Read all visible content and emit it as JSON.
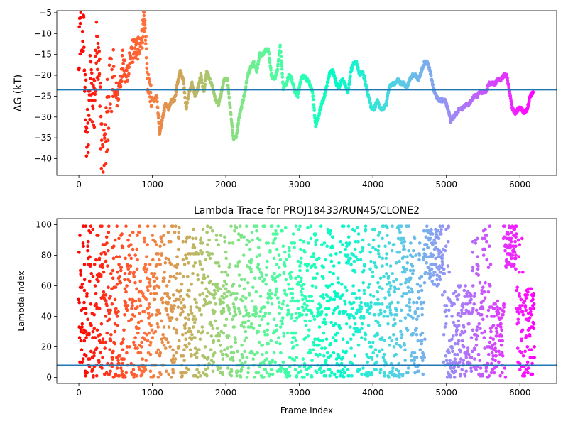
{
  "chart_data": [
    {
      "type": "scatter",
      "title": "",
      "xlabel": "",
      "ylabel": "ΔG (kT)",
      "xlim": [
        -300,
        6500
      ],
      "ylim": [
        -44,
        -4.5
      ],
      "xticks": [
        0,
        1000,
        2000,
        3000,
        4000,
        5000,
        6000
      ],
      "yticks": [
        -40,
        -35,
        -30,
        -25,
        -20,
        -15,
        -10,
        -5
      ],
      "hline": -23.5,
      "hline_color": "#1f77b4",
      "colormap": "rainbow (red at frame 0 → violet at last frame)",
      "frame_max": 6200,
      "trace": [
        [
          0,
          -10
        ],
        [
          40,
          -5
        ],
        [
          80,
          -20
        ],
        [
          120,
          -38
        ],
        [
          160,
          -20
        ],
        [
          200,
          -30
        ],
        [
          240,
          -14
        ],
        [
          280,
          -22
        ],
        [
          320,
          -42
        ],
        [
          360,
          -38
        ],
        [
          400,
          -26
        ],
        [
          460,
          -22
        ],
        [
          520,
          -25
        ],
        [
          560,
          -22
        ],
        [
          600,
          -16
        ],
        [
          650,
          -20
        ],
        [
          700,
          -15
        ],
        [
          760,
          -14
        ],
        [
          800,
          -14
        ],
        [
          850,
          -13
        ],
        [
          880,
          -7
        ],
        [
          900,
          -8
        ],
        [
          940,
          -22
        ],
        [
          980,
          -25
        ],
        [
          1020,
          -26
        ],
        [
          1060,
          -25
        ],
        [
          1100,
          -34
        ],
        [
          1140,
          -30
        ],
        [
          1180,
          -27
        ],
        [
          1220,
          -28
        ],
        [
          1260,
          -26
        ],
        [
          1300,
          -26
        ],
        [
          1340,
          -22
        ],
        [
          1380,
          -19
        ],
        [
          1420,
          -21
        ],
        [
          1460,
          -28
        ],
        [
          1500,
          -24
        ],
        [
          1540,
          -22
        ],
        [
          1580,
          -25
        ],
        [
          1620,
          -23
        ],
        [
          1660,
          -20
        ],
        [
          1700,
          -24
        ],
        [
          1740,
          -19
        ],
        [
          1780,
          -21
        ],
        [
          1820,
          -23
        ],
        [
          1860,
          -26
        ],
        [
          1900,
          -27
        ],
        [
          1940,
          -24
        ],
        [
          1980,
          -21
        ],
        [
          2020,
          -21
        ],
        [
          2060,
          -28
        ],
        [
          2100,
          -35
        ],
        [
          2140,
          -35
        ],
        [
          2180,
          -30
        ],
        [
          2220,
          -27
        ],
        [
          2260,
          -24
        ],
        [
          2300,
          -20
        ],
        [
          2340,
          -18
        ],
        [
          2380,
          -17
        ],
        [
          2420,
          -19
        ],
        [
          2460,
          -15
        ],
        [
          2500,
          -15
        ],
        [
          2540,
          -14
        ],
        [
          2580,
          -14
        ],
        [
          2620,
          -20
        ],
        [
          2660,
          -21
        ],
        [
          2700,
          -19
        ],
        [
          2740,
          -13
        ],
        [
          2780,
          -23
        ],
        [
          2820,
          -22
        ],
        [
          2860,
          -20
        ],
        [
          2900,
          -21
        ],
        [
          2940,
          -24
        ],
        [
          2980,
          -25
        ],
        [
          3020,
          -21
        ],
        [
          3060,
          -20
        ],
        [
          3100,
          -21
        ],
        [
          3140,
          -22
        ],
        [
          3180,
          -24
        ],
        [
          3220,
          -32
        ],
        [
          3260,
          -30
        ],
        [
          3300,
          -27
        ],
        [
          3340,
          -25
        ],
        [
          3380,
          -22
        ],
        [
          3420,
          -19
        ],
        [
          3460,
          -19
        ],
        [
          3500,
          -22
        ],
        [
          3540,
          -23
        ],
        [
          3580,
          -21
        ],
        [
          3620,
          -22
        ],
        [
          3660,
          -24
        ],
        [
          3700,
          -19
        ],
        [
          3740,
          -17
        ],
        [
          3780,
          -17
        ],
        [
          3820,
          -20
        ],
        [
          3860,
          -19
        ],
        [
          3900,
          -22
        ],
        [
          3940,
          -25
        ],
        [
          3980,
          -28
        ],
        [
          4020,
          -28
        ],
        [
          4060,
          -26
        ],
        [
          4100,
          -28
        ],
        [
          4140,
          -28
        ],
        [
          4180,
          -27
        ],
        [
          4220,
          -23
        ],
        [
          4260,
          -22
        ],
        [
          4300,
          -22
        ],
        [
          4340,
          -21
        ],
        [
          4380,
          -22
        ],
        [
          4420,
          -22
        ],
        [
          4460,
          -23
        ],
        [
          4500,
          -21
        ],
        [
          4540,
          -20
        ],
        [
          4580,
          -20
        ],
        [
          4620,
          -21
        ],
        [
          4660,
          -19
        ],
        [
          4700,
          -17
        ],
        [
          4740,
          -17
        ],
        [
          4780,
          -19
        ],
        [
          4820,
          -23
        ],
        [
          4860,
          -25
        ],
        [
          4900,
          -26
        ],
        [
          4940,
          -26
        ],
        [
          4980,
          -26
        ],
        [
          5020,
          -28
        ],
        [
          5060,
          -31
        ],
        [
          5100,
          -30
        ],
        [
          5140,
          -29
        ],
        [
          5180,
          -28
        ],
        [
          5220,
          -28
        ],
        [
          5260,
          -27
        ],
        [
          5300,
          -27
        ],
        [
          5340,
          -26
        ],
        [
          5380,
          -25
        ],
        [
          5420,
          -25
        ],
        [
          5460,
          -24
        ],
        [
          5500,
          -24
        ],
        [
          5540,
          -24
        ],
        [
          5580,
          -22
        ],
        [
          5620,
          -22
        ],
        [
          5660,
          -22
        ],
        [
          5700,
          -21
        ],
        [
          5740,
          -21
        ],
        [
          5780,
          -20
        ],
        [
          5820,
          -20
        ],
        [
          5860,
          -24
        ],
        [
          5900,
          -28
        ],
        [
          5940,
          -29
        ],
        [
          5980,
          -28
        ],
        [
          6020,
          -28
        ],
        [
          6060,
          -29
        ],
        [
          6100,
          -28
        ],
        [
          6140,
          -25
        ],
        [
          6180,
          -24
        ]
      ]
    },
    {
      "type": "scatter",
      "title": "Lambda Trace for PROJ18433/RUN45/CLONE2",
      "xlabel": "Frame Index",
      "ylabel": "Lambda Index",
      "xlim": [
        -300,
        6500
      ],
      "ylim": [
        -4,
        104
      ],
      "xticks": [
        0,
        1000,
        2000,
        3000,
        4000,
        5000,
        6000
      ],
      "yticks": [
        0,
        20,
        40,
        60,
        80,
        100
      ],
      "hline": 8,
      "hline_color": "#1f77b4",
      "colormap": "rainbow (red at frame 0 → violet at last frame)",
      "frame_max": 6200,
      "n_points": 2600,
      "lambda_range": [
        0,
        99
      ]
    }
  ]
}
